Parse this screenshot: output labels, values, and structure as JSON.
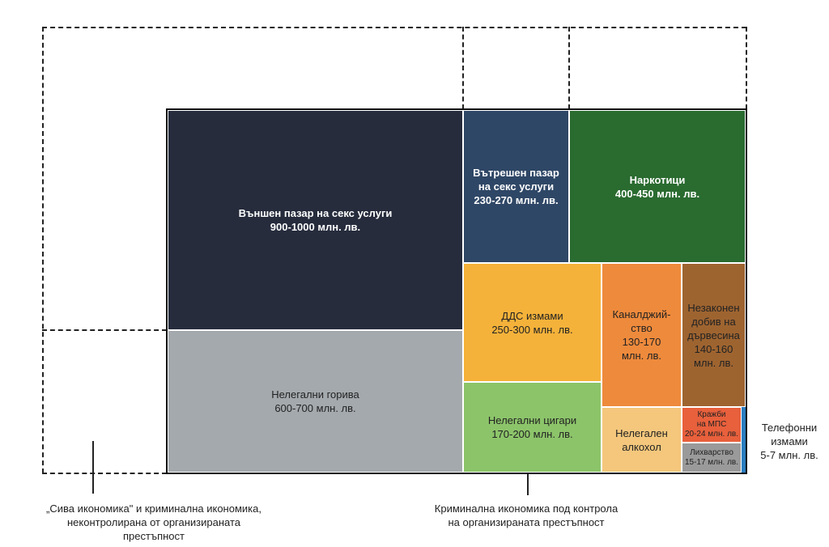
{
  "cells": [
    {
      "label": "Външен пазар на секс услуги\n900-1000 млн. лв.",
      "color": "#262c3c"
    },
    {
      "label": "Нелегални горива\n600-700 млн. лв.",
      "color": "#a4a9ad"
    },
    {
      "label": "Вътрешен пазар\nна секс услуги\n230-270 млн. лв.",
      "color": "#2f4766"
    },
    {
      "label": "Наркотици\n400-450 млн. лв.",
      "color": "#2a6b30"
    },
    {
      "label": "ДДС измами\n250-300 млн. лв.",
      "color": "#f5b23a"
    },
    {
      "label": "Нелегални цигари\n170-200 млн. лв.",
      "color": "#8cc46a"
    },
    {
      "label": "Каналджий-\nство\n130-170\nмлн. лв.",
      "color": "#ee8a3c"
    },
    {
      "label": "Незаконен\nдобив на\nдървесина\n140-160\nмлн. лв.",
      "color": "#9e6430"
    },
    {
      "label": "Нелегален\nалкохол",
      "color": "#f4c77c"
    },
    {
      "label": "Кражби\nна МПС\n20-24 млн. лв.",
      "color": "#e8603c"
    },
    {
      "label": "Лихварство\n15-17 млн. лв.",
      "color": "#9a9a9a"
    },
    {
      "label": "",
      "color": "#2a7dc0"
    }
  ],
  "phone_label": "Телефонни\nизмами\n5-7 млн. лв.",
  "legend_left": "„Сива икономика\" и криминална икономика,\nнеконтролирана от организираната\nпрестъпност",
  "legend_right": "Криминална икономика под контрола\nна организираната престъпност"
}
